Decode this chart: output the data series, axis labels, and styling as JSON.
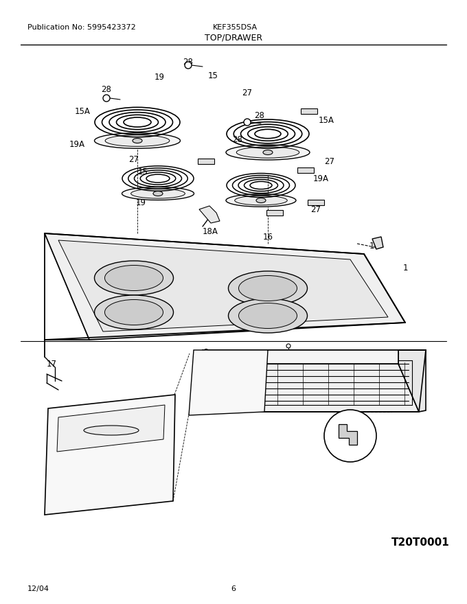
{
  "pub_no": "Publication No: 5995423372",
  "model": "KEF355DSA",
  "section": "TOP/DRAWER",
  "date": "12/04",
  "page": "6",
  "diagram_code": "T20T0001",
  "bg_color": "#ffffff",
  "line_color": "#000000",
  "header_fontsize": 8,
  "label_fontsize": 8.5,
  "footer_fontsize": 8,
  "code_fontsize": 11
}
